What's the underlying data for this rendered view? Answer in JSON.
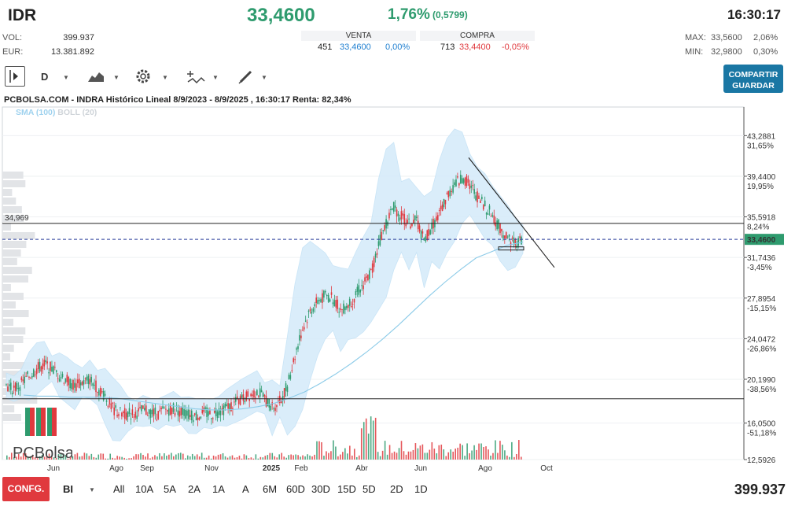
{
  "header": {
    "ticker": "IDR",
    "price": "33,4600",
    "change_pct": "1,76%",
    "change_abs": "(0,5799)",
    "time": "16:30:17",
    "vol_label": "VOL:",
    "vol_value": "399.937",
    "eur_label": "EUR:",
    "eur_value": "13.381.892",
    "max_label": "MAX:",
    "max_value": "33,5600",
    "max_pct": "2,06%",
    "min_label": "MIN:",
    "min_value": "32,9800",
    "min_pct": "0,30%"
  },
  "quote": {
    "sell_label": "VENTA",
    "buy_label": "COMPRA",
    "sell_qty": "451",
    "sell_price": "33,4600",
    "sell_pct": "0,00%",
    "buy_qty": "713",
    "buy_price": "33,4400",
    "buy_pct": "-0,05%"
  },
  "toolbar": {
    "period": "D",
    "share_line1": "COMPARTIR",
    "share_line2": "GUARDAR"
  },
  "chart_title": "PCBOLSA.COM - INDRA Histórico Lineal 8/9/2023 - 8/9/2025 , 16:30:17 Renta: 82,34%",
  "legend": {
    "sma": "SMA (100)",
    "boll": "BOLL (20)"
  },
  "logo_text": "PCBolsa",
  "bottom": {
    "config": "CONFG.",
    "bi": "BI",
    "ranges": [
      "All",
      "10A",
      "5A",
      "2A",
      "1A",
      "A",
      "6M",
      "60D",
      "30D",
      "15D",
      "5D",
      "2D",
      "1D"
    ],
    "volume_total": "399.937"
  },
  "colors": {
    "up": "#2e9b6e",
    "down": "#e0393e",
    "sma": "#8ccbe8",
    "boll_fill": "#d6ecfa",
    "accent": "#1a77a4"
  },
  "chart_data": {
    "type": "line",
    "y_axis": {
      "ylim": [
        12.5926,
        46.0
      ],
      "ticks": [
        {
          "value": 43.2881,
          "label": "43,2881",
          "pct": "31,65%",
          "dir": "up"
        },
        {
          "value": 39.44,
          "label": "39,4400",
          "pct": "19,95%",
          "dir": "up"
        },
        {
          "value": 35.5918,
          "label": "35,5918",
          "pct": "8,24%",
          "dir": "up"
        },
        {
          "value": 31.7436,
          "label": "31,7436",
          "pct": "-3,45%",
          "dir": "down"
        },
        {
          "value": 27.8954,
          "label": "27,8954",
          "pct": "-15,15%",
          "dir": "down"
        },
        {
          "value": 24.0472,
          "label": "24,0472",
          "pct": "-26,86%",
          "dir": "down"
        },
        {
          "value": 20.199,
          "label": "20,1990",
          "pct": "-38,56%",
          "dir": "down"
        },
        {
          "value": 16.05,
          "label": "16,0500",
          "pct": "-51,18%",
          "dir": "down"
        },
        {
          "value": 12.5926,
          "label": "12,5926",
          "pct": "",
          "dir": "none"
        }
      ]
    },
    "x_axis": {
      "labels": [
        "Jun",
        "Ago",
        "Sep",
        "Nov",
        "2025",
        "Feb",
        "Abr",
        "Jun",
        "Ago",
        "Oct"
      ]
    },
    "last_price": 33.46,
    "last_price_label": "33,4600",
    "resistance": 34.969,
    "resistance_label": "34,969",
    "support": 18.35,
    "series": [
      {
        "name": "INDRA",
        "values": [
          19.6,
          19.3,
          19.8,
          20.5,
          21.2,
          21.6,
          21.2,
          20.6,
          20.1,
          19.5,
          19.9,
          20.2,
          19.4,
          18.6,
          17.4,
          17.0,
          16.9,
          17.0,
          17.2,
          17.1,
          16.9,
          17.3,
          17.4,
          17.2,
          16.8,
          16.7,
          17.0,
          16.9,
          17.2,
          17.5,
          17.9,
          18.3,
          18.7,
          19.1,
          18.4,
          17.5,
          18.1,
          19.6,
          22.5,
          25.0,
          26.7,
          27.6,
          28.1,
          27.9,
          26.8,
          27.3,
          28.2,
          29.2,
          30.3,
          33.0,
          35.0,
          36.6,
          35.6,
          34.9,
          35.3,
          33.2,
          34.7,
          35.8,
          37.6,
          38.6,
          39.3,
          38.7,
          37.5,
          36.6,
          35.7,
          34.5,
          33.6,
          33.2,
          33.46
        ]
      },
      {
        "name": "SMA (100)",
        "values": [
          18.7,
          18.6,
          18.6,
          18.5,
          18.5,
          18.5,
          18.4,
          18.2,
          18.0,
          17.8,
          17.6,
          17.4,
          17.3,
          17.3,
          17.4,
          17.6,
          17.9,
          18.4,
          19.0,
          19.8,
          20.7,
          21.7,
          22.8,
          24.0,
          25.3,
          26.7,
          28.1,
          29.4,
          30.6,
          31.7,
          32.3,
          32.9,
          33.2
        ]
      }
    ]
  }
}
